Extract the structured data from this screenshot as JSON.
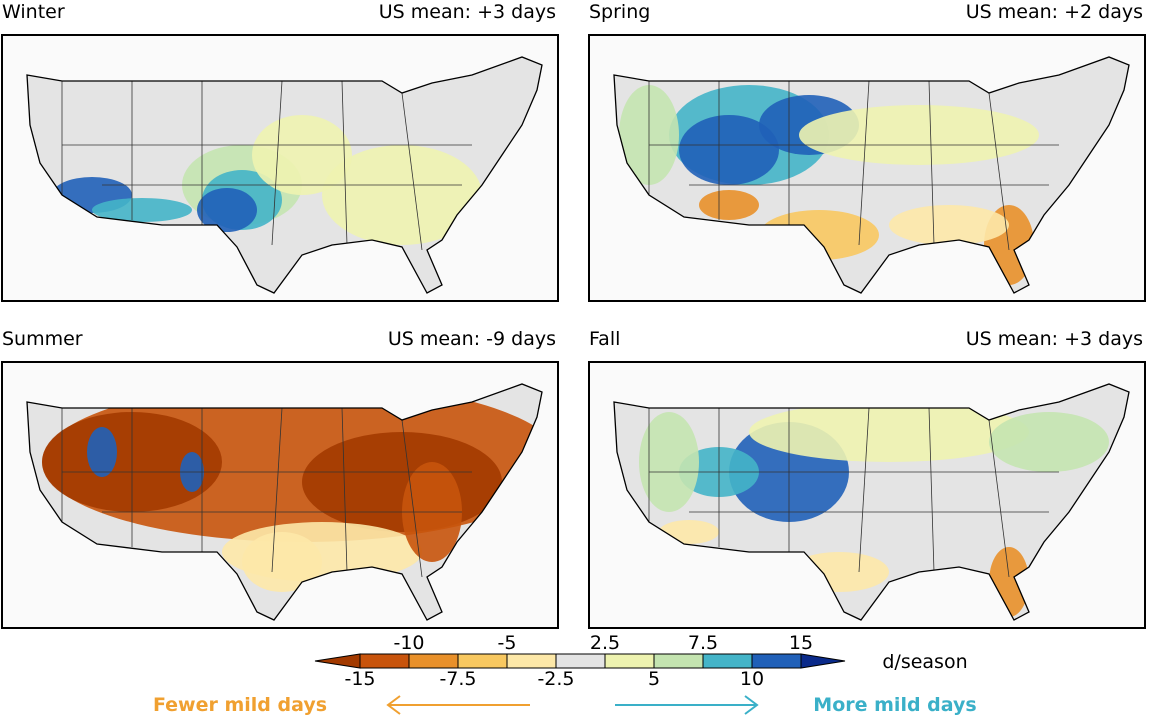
{
  "panels": [
    {
      "title": "Winter",
      "mean": "US mean: +3 days"
    },
    {
      "title": "Spring",
      "mean": "US mean: +2 days"
    },
    {
      "title": "Summer",
      "mean": "US mean: -9 days"
    },
    {
      "title": "Fall",
      "mean": "US mean: +3 days"
    }
  ],
  "colorbar": {
    "ticks": [
      -15,
      -10,
      -7.5,
      -5,
      -2.5,
      2.5,
      5,
      7.5,
      10,
      15
    ],
    "colors": [
      "#a33a00",
      "#c8540c",
      "#e8902a",
      "#f8c860",
      "#fde8a8",
      "#e4e4e4",
      "#eef3b0",
      "#c4e4b0",
      "#44b4c8",
      "#2060b8",
      "#0a2a8a"
    ],
    "unit": "d/season"
  },
  "legend": {
    "fewer": "Fewer mild days",
    "more": "More mild days"
  }
}
